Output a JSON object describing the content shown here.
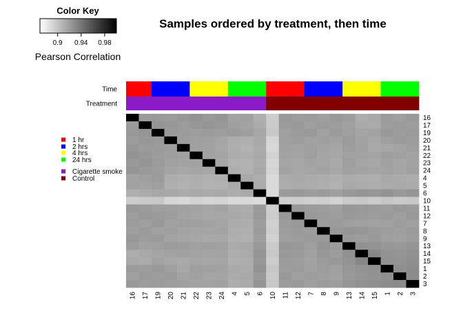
{
  "chart_data": {
    "type": "heatmap",
    "title": "Samples ordered by treatment, then time",
    "color_key": {
      "title": "Color Key",
      "label": "Pearson Correlation",
      "range": [
        0.87,
        1.0
      ],
      "ticks": [
        "0.9",
        "0.94",
        "0.98"
      ],
      "tick_values": [
        0.9,
        0.94,
        0.98
      ],
      "low_color": "#ffffff",
      "high_color": "#000000"
    },
    "samples": [
      "16",
      "17",
      "19",
      "20",
      "21",
      "22",
      "23",
      "24",
      "4",
      "5",
      "6",
      "10",
      "11",
      "12",
      "7",
      "8",
      "9",
      "13",
      "14",
      "15",
      "1",
      "2",
      "3"
    ],
    "row_labels": [
      "16",
      "17",
      "19",
      "20",
      "21",
      "22",
      "23",
      "24",
      "4",
      "5",
      "6",
      "10",
      "11",
      "12",
      "7",
      "8",
      "9",
      "13",
      "14",
      "15",
      "1",
      "2",
      "3"
    ],
    "col_labels": [
      "16",
      "17",
      "19",
      "20",
      "21",
      "22",
      "23",
      "24",
      "4",
      "5",
      "6",
      "10",
      "11",
      "12",
      "7",
      "8",
      "9",
      "13",
      "14",
      "15",
      "1",
      "2",
      "3"
    ],
    "annotation_rows": [
      {
        "label": "Time",
        "values": [
          "1 hr",
          "1 hr",
          "2 hrs",
          "2 hrs",
          "2 hrs",
          "4 hrs",
          "4 hrs",
          "4 hrs",
          "24 hrs",
          "24 hrs",
          "24 hrs",
          "1 hr",
          "1 hr",
          "1 hr",
          "2 hrs",
          "2 hrs",
          "2 hrs",
          "4 hrs",
          "4 hrs",
          "4 hrs",
          "24 hrs",
          "24 hrs",
          "24 hrs"
        ]
      },
      {
        "label": "Treatment",
        "values": [
          "Cigarette smoke",
          "Cigarette smoke",
          "Cigarette smoke",
          "Cigarette smoke",
          "Cigarette smoke",
          "Cigarette smoke",
          "Cigarette smoke",
          "Cigarette smoke",
          "Cigarette smoke",
          "Cigarette smoke",
          "Cigarette smoke",
          "Control",
          "Control",
          "Control",
          "Control",
          "Control",
          "Control",
          "Control",
          "Control",
          "Control",
          "Control",
          "Control",
          "Control"
        ]
      }
    ],
    "legend": [
      {
        "label": "1 hr",
        "color": "#ff0000"
      },
      {
        "label": "2 hrs",
        "color": "#0000ff"
      },
      {
        "label": "4 hrs",
        "color": "#ffff00"
      },
      {
        "label": "24 hrs",
        "color": "#00ff00"
      },
      {
        "label": "Cigarette smoke",
        "color": "#8a1bc7"
      },
      {
        "label": "Control",
        "color": "#800000"
      }
    ],
    "outlier_sample": "10",
    "diagonal_value": 1.0,
    "values": [
      [
        1.0,
        0.921,
        0.922,
        0.921,
        0.923,
        0.925,
        0.922,
        0.924,
        0.917,
        0.918,
        0.911,
        0.896,
        0.922,
        0.92,
        0.921,
        0.919,
        0.922,
        0.92,
        0.912,
        0.914,
        0.921,
        0.919,
        0.922
      ],
      [
        0.921,
        1.0,
        0.924,
        0.923,
        0.921,
        0.923,
        0.924,
        0.922,
        0.919,
        0.917,
        0.913,
        0.897,
        0.921,
        0.922,
        0.919,
        0.921,
        0.92,
        0.918,
        0.914,
        0.913,
        0.92,
        0.921,
        0.92
      ],
      [
        0.922,
        0.924,
        1.0,
        0.922,
        0.921,
        0.92,
        0.921,
        0.92,
        0.921,
        0.919,
        0.915,
        0.898,
        0.919,
        0.921,
        0.922,
        0.918,
        0.921,
        0.919,
        0.916,
        0.917,
        0.922,
        0.92,
        0.921
      ],
      [
        0.921,
        0.923,
        0.922,
        1.0,
        0.92,
        0.919,
        0.918,
        0.916,
        0.912,
        0.911,
        0.914,
        0.891,
        0.919,
        0.92,
        0.918,
        0.919,
        0.917,
        0.921,
        0.917,
        0.915,
        0.919,
        0.921,
        0.92
      ],
      [
        0.923,
        0.921,
        0.921,
        0.92,
        1.0,
        0.918,
        0.917,
        0.915,
        0.911,
        0.909,
        0.913,
        0.89,
        0.918,
        0.917,
        0.919,
        0.917,
        0.916,
        0.92,
        0.918,
        0.914,
        0.915,
        0.917,
        0.919
      ],
      [
        0.925,
        0.923,
        0.92,
        0.919,
        0.918,
        1.0,
        0.917,
        0.916,
        0.912,
        0.911,
        0.914,
        0.893,
        0.917,
        0.916,
        0.919,
        0.916,
        0.915,
        0.918,
        0.917,
        0.916,
        0.919,
        0.918,
        0.917
      ],
      [
        0.922,
        0.924,
        0.921,
        0.918,
        0.917,
        0.917,
        1.0,
        0.915,
        0.91,
        0.909,
        0.913,
        0.891,
        0.916,
        0.915,
        0.917,
        0.916,
        0.914,
        0.919,
        0.916,
        0.915,
        0.918,
        0.916,
        0.917
      ],
      [
        0.924,
        0.922,
        0.92,
        0.916,
        0.915,
        0.916,
        0.915,
        1.0,
        0.911,
        0.91,
        0.914,
        0.892,
        0.917,
        0.915,
        0.916,
        0.917,
        0.915,
        0.918,
        0.917,
        0.916,
        0.917,
        0.916,
        0.918
      ],
      [
        0.917,
        0.919,
        0.921,
        0.912,
        0.911,
        0.912,
        0.91,
        0.911,
        1.0,
        0.914,
        0.912,
        0.889,
        0.913,
        0.914,
        0.913,
        0.912,
        0.911,
        0.913,
        0.912,
        0.911,
        0.914,
        0.913,
        0.912
      ],
      [
        0.918,
        0.917,
        0.919,
        0.911,
        0.909,
        0.911,
        0.909,
        0.91,
        0.914,
        1.0,
        0.913,
        0.889,
        0.912,
        0.913,
        0.912,
        0.911,
        0.91,
        0.914,
        0.913,
        0.912,
        0.913,
        0.914,
        0.913
      ],
      [
        0.911,
        0.913,
        0.915,
        0.914,
        0.913,
        0.914,
        0.913,
        0.914,
        0.912,
        0.913,
        1.0,
        0.888,
        0.921,
        0.922,
        0.92,
        0.921,
        0.919,
        0.922,
        0.924,
        0.923,
        0.925,
        0.922,
        0.924
      ],
      [
        0.896,
        0.897,
        0.898,
        0.891,
        0.89,
        0.893,
        0.891,
        0.892,
        0.889,
        0.889,
        0.888,
        1.0,
        0.895,
        0.896,
        0.894,
        0.895,
        0.893,
        0.897,
        0.898,
        0.896,
        0.899,
        0.897,
        0.898
      ],
      [
        0.922,
        0.921,
        0.919,
        0.919,
        0.918,
        0.917,
        0.916,
        0.917,
        0.913,
        0.912,
        0.921,
        0.895,
        1.0,
        0.922,
        0.921,
        0.92,
        0.919,
        0.923,
        0.922,
        0.921,
        0.92,
        0.922,
        0.921
      ],
      [
        0.92,
        0.922,
        0.921,
        0.92,
        0.917,
        0.916,
        0.915,
        0.915,
        0.914,
        0.913,
        0.922,
        0.896,
        0.922,
        1.0,
        0.922,
        0.921,
        0.92,
        0.922,
        0.921,
        0.92,
        0.921,
        0.919,
        0.922
      ],
      [
        0.921,
        0.919,
        0.922,
        0.918,
        0.919,
        0.919,
        0.917,
        0.916,
        0.913,
        0.912,
        0.92,
        0.894,
        0.921,
        0.922,
        1.0,
        0.92,
        0.921,
        0.919,
        0.918,
        0.917,
        0.918,
        0.92,
        0.919
      ],
      [
        0.919,
        0.921,
        0.918,
        0.919,
        0.917,
        0.916,
        0.916,
        0.917,
        0.912,
        0.911,
        0.921,
        0.895,
        0.92,
        0.921,
        0.92,
        1.0,
        0.922,
        0.924,
        0.923,
        0.921,
        0.92,
        0.919,
        0.921
      ],
      [
        0.922,
        0.92,
        0.921,
        0.917,
        0.916,
        0.915,
        0.914,
        0.915,
        0.911,
        0.91,
        0.919,
        0.893,
        0.919,
        0.92,
        0.921,
        0.922,
        1.0,
        0.921,
        0.92,
        0.922,
        0.919,
        0.918,
        0.92
      ],
      [
        0.92,
        0.918,
        0.919,
        0.921,
        0.92,
        0.918,
        0.919,
        0.918,
        0.913,
        0.914,
        0.922,
        0.897,
        0.923,
        0.922,
        0.919,
        0.924,
        0.921,
        1.0,
        0.926,
        0.925,
        0.923,
        0.922,
        0.924
      ],
      [
        0.912,
        0.914,
        0.916,
        0.917,
        0.918,
        0.917,
        0.916,
        0.917,
        0.912,
        0.913,
        0.924,
        0.898,
        0.922,
        0.921,
        0.918,
        0.923,
        0.92,
        0.926,
        1.0,
        0.931,
        0.925,
        0.924,
        0.926
      ],
      [
        0.914,
        0.913,
        0.917,
        0.915,
        0.914,
        0.916,
        0.915,
        0.916,
        0.911,
        0.912,
        0.923,
        0.896,
        0.921,
        0.92,
        0.917,
        0.921,
        0.922,
        0.925,
        0.931,
        1.0,
        0.926,
        0.925,
        0.927
      ],
      [
        0.921,
        0.92,
        0.922,
        0.919,
        0.915,
        0.919,
        0.918,
        0.917,
        0.914,
        0.913,
        0.925,
        0.899,
        0.92,
        0.921,
        0.918,
        0.92,
        0.919,
        0.923,
        0.925,
        0.926,
        1.0,
        0.927,
        0.928
      ],
      [
        0.919,
        0.921,
        0.92,
        0.921,
        0.917,
        0.918,
        0.916,
        0.916,
        0.913,
        0.914,
        0.922,
        0.897,
        0.922,
        0.919,
        0.92,
        0.919,
        0.918,
        0.922,
        0.924,
        0.925,
        0.927,
        1.0,
        0.929
      ],
      [
        0.922,
        0.92,
        0.921,
        0.92,
        0.919,
        0.917,
        0.917,
        0.918,
        0.912,
        0.913,
        0.924,
        0.898,
        0.921,
        0.922,
        0.919,
        0.921,
        0.92,
        0.924,
        0.926,
        0.927,
        0.928,
        0.929,
        1.0
      ]
    ]
  }
}
